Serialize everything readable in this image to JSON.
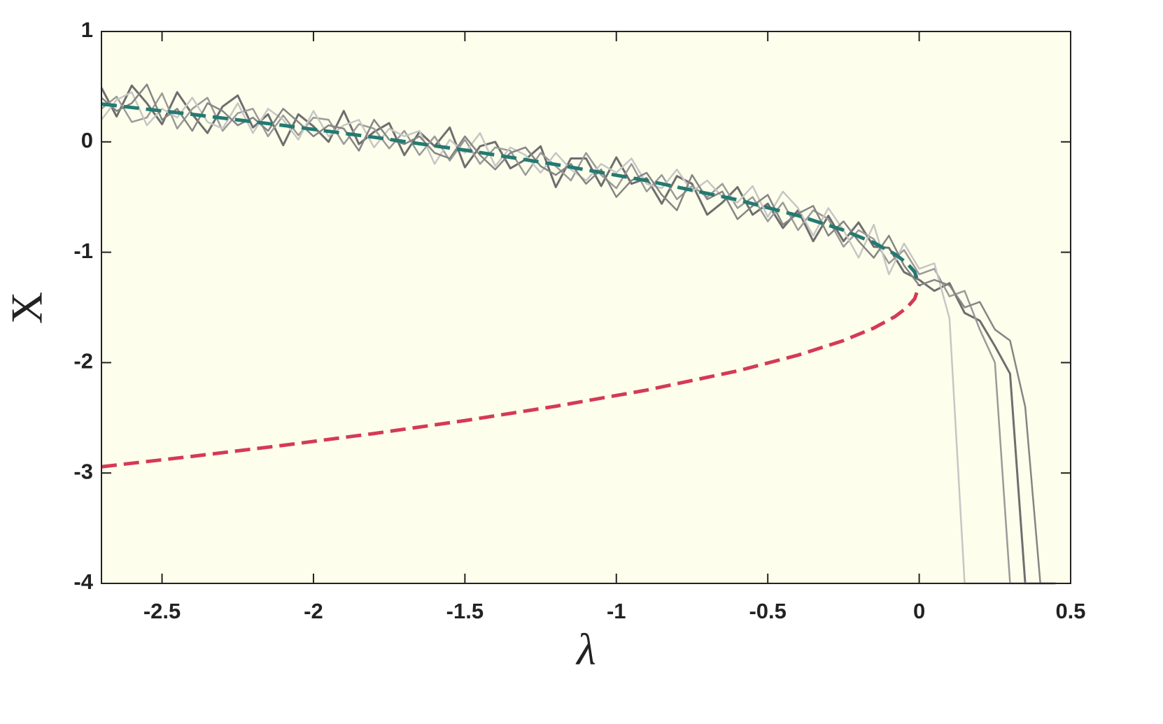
{
  "chart_data": {
    "type": "line",
    "x_label": "λ",
    "y_label": "X",
    "xlim": [
      -2.7,
      0.5
    ],
    "ylim": [
      -4,
      1
    ],
    "xticks": [
      -2.5,
      -2,
      -1.5,
      -1,
      -0.5,
      0,
      0.5
    ],
    "yticks": [
      -4,
      -3,
      -2,
      -1,
      0,
      1
    ],
    "grid": false,
    "background": "#fefeec",
    "x": [
      -2.7,
      -2.65,
      -2.6,
      -2.55,
      -2.5,
      -2.45,
      -2.4,
      -2.35,
      -2.3,
      -2.25,
      -2.2,
      -2.15,
      -2.1,
      -2.05,
      -2,
      -1.95,
      -1.9,
      -1.85,
      -1.8,
      -1.75,
      -1.7,
      -1.65,
      -1.6,
      -1.55,
      -1.5,
      -1.45,
      -1.4,
      -1.35,
      -1.3,
      -1.25,
      -1.2,
      -1.15,
      -1.1,
      -1.05,
      -1,
      -0.95,
      -0.9,
      -0.85,
      -0.8,
      -0.75,
      -0.7,
      -0.65,
      -0.6,
      -0.55,
      -0.5,
      -0.45,
      -0.4,
      -0.35,
      -0.3,
      -0.25,
      -0.2,
      -0.15,
      -0.1,
      -0.05,
      0,
      0.05,
      0.1,
      0.15,
      0.2,
      0.25,
      0.3,
      0.35,
      0.4,
      0.45
    ],
    "series": [
      {
        "color": "#6e6e6e",
        "width": 3,
        "values": [
          0.49,
          0.23,
          0.51,
          0.35,
          0.16,
          0.45,
          0.25,
          0.08,
          0.32,
          0.42,
          0.13,
          0.25,
          -0.03,
          0.25,
          0.14,
          0.0,
          0.28,
          -0.02,
          0.09,
          0.17,
          -0.12,
          0.09,
          -0.04,
          0.13,
          -0.23,
          -0.04,
          0.0,
          -0.24,
          -0.16,
          -0.04,
          -0.41,
          -0.15,
          -0.15,
          -0.4,
          -0.14,
          -0.38,
          -0.33,
          -0.56,
          -0.31,
          -0.38,
          -0.66,
          -0.55,
          -0.41,
          -0.66,
          -0.56,
          -0.78,
          -0.62,
          -0.9,
          -0.67,
          -0.9,
          -0.73,
          -0.95,
          -0.96,
          -1.18,
          -1.25,
          -1.35,
          -1.28,
          -1.55,
          -1.62,
          -1.85,
          -2.1,
          -4,
          -4,
          -4
        ]
      },
      {
        "color": "#9a9a9a",
        "width": 2.5,
        "values": [
          0.3,
          0.41,
          0.18,
          0.22,
          0.44,
          0.12,
          0.3,
          0.4,
          0.1,
          0.26,
          0.3,
          0.05,
          0.24,
          0.06,
          0.22,
          0.2,
          -0.02,
          0.16,
          0.12,
          -0.06,
          0.1,
          -0.12,
          0.05,
          -0.17,
          0.02,
          -0.2,
          -0.05,
          -0.08,
          -0.3,
          -0.1,
          -0.22,
          -0.35,
          -0.1,
          -0.3,
          -0.42,
          -0.2,
          -0.45,
          -0.3,
          -0.52,
          -0.4,
          -0.5,
          -0.38,
          -0.6,
          -0.5,
          -0.72,
          -0.55,
          -0.8,
          -0.62,
          -0.7,
          -0.95,
          -0.8,
          -0.88,
          -1.1,
          -0.98,
          -1.2,
          -1.15,
          -1.4,
          -1.35,
          -1.7,
          -2.0,
          -4,
          -4,
          -4,
          -4
        ]
      },
      {
        "color": "#c6c6c6",
        "width": 2.5,
        "values": [
          0.2,
          0.38,
          0.45,
          0.15,
          0.3,
          0.22,
          0.4,
          0.18,
          0.12,
          0.35,
          0.08,
          0.3,
          0.2,
          0.02,
          0.28,
          0.05,
          0.15,
          0.2,
          -0.05,
          0.12,
          0.05,
          0.1,
          -0.2,
          0.02,
          -0.1,
          0.08,
          -0.22,
          -0.05,
          -0.12,
          -0.28,
          -0.1,
          -0.25,
          -0.35,
          -0.2,
          -0.28,
          -0.15,
          -0.38,
          -0.42,
          -0.25,
          -0.45,
          -0.35,
          -0.5,
          -0.55,
          -0.4,
          -0.68,
          -0.45,
          -0.6,
          -0.85,
          -0.6,
          -0.8,
          -1.05,
          -0.75,
          -1.2,
          -0.92,
          -1.15,
          -1.1,
          -1.6,
          -4,
          -4,
          -4,
          -4,
          -4,
          -4,
          -4
        ]
      },
      {
        "color": "#858585",
        "width": 2.5,
        "values": [
          0.4,
          0.28,
          0.35,
          0.52,
          0.2,
          0.3,
          0.1,
          0.35,
          0.28,
          0.15,
          0.22,
          0.1,
          0.3,
          0.18,
          0.05,
          0.15,
          0.12,
          -0.08,
          0.2,
          0.02,
          -0.02,
          0.05,
          -0.1,
          -0.15,
          0.05,
          -0.12,
          -0.25,
          -0.1,
          -0.05,
          -0.22,
          -0.3,
          -0.2,
          -0.38,
          -0.25,
          -0.5,
          -0.35,
          -0.28,
          -0.48,
          -0.62,
          -0.3,
          -0.52,
          -0.45,
          -0.7,
          -0.58,
          -0.48,
          -0.75,
          -0.65,
          -0.58,
          -0.85,
          -0.72,
          -0.9,
          -1.05,
          -0.85,
          -1.12,
          -1.3,
          -1.25,
          -1.3,
          -1.5,
          -1.45,
          -1.7,
          -1.8,
          -2.4,
          -4,
          -4
        ]
      },
      {
        "color": "#237a72",
        "width": 5,
        "dashed": true,
        "x": [
          -2.7,
          -2.4,
          -2.1,
          -1.8,
          -1.5,
          -1.2,
          -0.9,
          -0.6,
          -0.4,
          -0.25,
          -0.15,
          -0.08,
          -0.04,
          -0.015,
          0
        ],
        "values": [
          0.343,
          0.249,
          0.149,
          0.042,
          -0.075,
          -0.205,
          -0.351,
          -0.525,
          -0.668,
          -0.8,
          -0.913,
          -1.017,
          -1.1,
          -1.178,
          -1.3
        ]
      },
      {
        "color": "#d43a55",
        "width": 5,
        "dashed": true,
        "x": [
          -2.7,
          -2.4,
          -2.1,
          -1.8,
          -1.5,
          -1.2,
          -0.9,
          -0.6,
          -0.4,
          -0.25,
          -0.15,
          -0.08,
          -0.04,
          -0.015,
          0
        ],
        "values": [
          -2.943,
          -2.849,
          -2.749,
          -2.642,
          -2.525,
          -2.395,
          -2.249,
          -2.075,
          -1.932,
          -1.8,
          -1.687,
          -1.583,
          -1.5,
          -1.422,
          -1.3
        ]
      }
    ]
  }
}
